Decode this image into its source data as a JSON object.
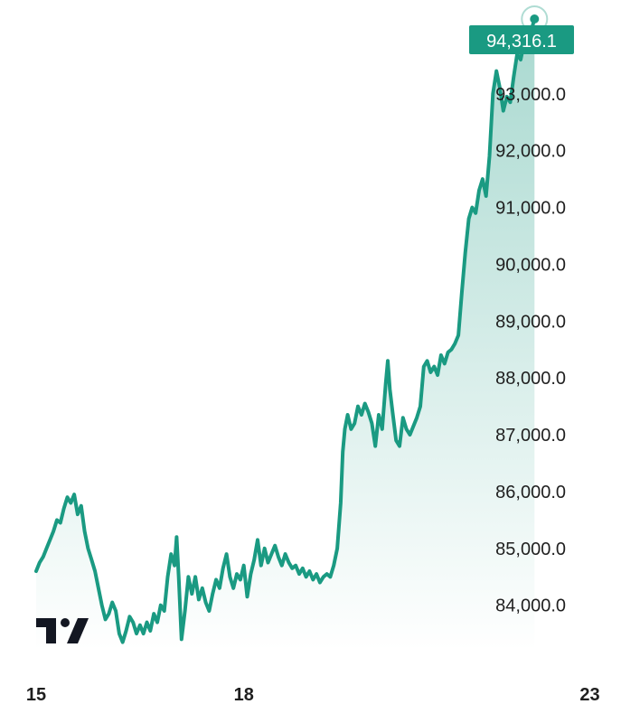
{
  "colors": {
    "line": "#1a9a82",
    "area_top": "#1a9a82",
    "price_tag_bg": "#1a9a82",
    "text": "#1f1f1f",
    "logo": "#131722"
  },
  "logo": {
    "icon": "tradingview-logo-icon"
  },
  "chart_data": {
    "type": "area",
    "title": "",
    "xlabel": "",
    "ylabel": "",
    "xlim": [
      15,
      23.45
    ],
    "ylim": [
      83200,
      94650
    ],
    "y_tick_values": [
      84000,
      85000,
      86000,
      87000,
      88000,
      89000,
      90000,
      91000,
      92000,
      93000
    ],
    "y_tick_labels": [
      "84,000.0",
      "85,000.0",
      "86,000.0",
      "87,000.0",
      "88,000.0",
      "89,000.0",
      "90,000.0",
      "91,000.0",
      "92,000.0",
      "93,000.0"
    ],
    "x_ticks": [
      {
        "x": 15,
        "label": "15"
      },
      {
        "x": 18,
        "label": "18"
      },
      {
        "x": 23,
        "label": "23"
      }
    ],
    "last_price": 94316.1,
    "last_price_label": "94,316.1",
    "series": [
      {
        "points": [
          [
            15.0,
            84600
          ],
          [
            15.05,
            84750
          ],
          [
            15.1,
            84850
          ],
          [
            15.15,
            85000
          ],
          [
            15.2,
            85150
          ],
          [
            15.25,
            85300
          ],
          [
            15.3,
            85500
          ],
          [
            15.35,
            85450
          ],
          [
            15.4,
            85700
          ],
          [
            15.45,
            85900
          ],
          [
            15.5,
            85800
          ],
          [
            15.55,
            85950
          ],
          [
            15.6,
            85600
          ],
          [
            15.65,
            85750
          ],
          [
            15.7,
            85300
          ],
          [
            15.75,
            85000
          ],
          [
            15.8,
            84800
          ],
          [
            15.85,
            84600
          ],
          [
            15.9,
            84300
          ],
          [
            15.95,
            84000
          ],
          [
            16.0,
            83750
          ],
          [
            16.05,
            83850
          ],
          [
            16.1,
            84050
          ],
          [
            16.15,
            83900
          ],
          [
            16.2,
            83500
          ],
          [
            16.25,
            83350
          ],
          [
            16.3,
            83550
          ],
          [
            16.35,
            83800
          ],
          [
            16.4,
            83700
          ],
          [
            16.45,
            83500
          ],
          [
            16.5,
            83650
          ],
          [
            16.55,
            83500
          ],
          [
            16.6,
            83700
          ],
          [
            16.65,
            83550
          ],
          [
            16.7,
            83850
          ],
          [
            16.75,
            83700
          ],
          [
            16.8,
            84000
          ],
          [
            16.85,
            83900
          ],
          [
            16.9,
            84500
          ],
          [
            16.95,
            84900
          ],
          [
            17.0,
            84700
          ],
          [
            17.03,
            85200
          ],
          [
            17.06,
            84500
          ],
          [
            17.1,
            83400
          ],
          [
            17.15,
            83900
          ],
          [
            17.2,
            84500
          ],
          [
            17.25,
            84200
          ],
          [
            17.3,
            84500
          ],
          [
            17.35,
            84100
          ],
          [
            17.4,
            84300
          ],
          [
            17.45,
            84050
          ],
          [
            17.5,
            83900
          ],
          [
            17.55,
            84200
          ],
          [
            17.6,
            84450
          ],
          [
            17.65,
            84300
          ],
          [
            17.7,
            84650
          ],
          [
            17.75,
            84900
          ],
          [
            17.8,
            84500
          ],
          [
            17.85,
            84300
          ],
          [
            17.9,
            84550
          ],
          [
            17.95,
            84450
          ],
          [
            18.0,
            84700
          ],
          [
            18.05,
            84150
          ],
          [
            18.1,
            84550
          ],
          [
            18.15,
            84800
          ],
          [
            18.2,
            85150
          ],
          [
            18.25,
            84700
          ],
          [
            18.3,
            85000
          ],
          [
            18.35,
            84750
          ],
          [
            18.4,
            84900
          ],
          [
            18.45,
            85050
          ],
          [
            18.5,
            84850
          ],
          [
            18.55,
            84700
          ],
          [
            18.6,
            84900
          ],
          [
            18.65,
            84750
          ],
          [
            18.7,
            84650
          ],
          [
            18.75,
            84700
          ],
          [
            18.8,
            84550
          ],
          [
            18.85,
            84650
          ],
          [
            18.9,
            84500
          ],
          [
            18.95,
            84600
          ],
          [
            19.0,
            84450
          ],
          [
            19.05,
            84550
          ],
          [
            19.1,
            84400
          ],
          [
            19.15,
            84500
          ],
          [
            19.2,
            84550
          ],
          [
            19.25,
            84500
          ],
          [
            19.3,
            84700
          ],
          [
            19.35,
            85000
          ],
          [
            19.4,
            85800
          ],
          [
            19.43,
            86700
          ],
          [
            19.46,
            87100
          ],
          [
            19.5,
            87350
          ],
          [
            19.55,
            87100
          ],
          [
            19.6,
            87200
          ],
          [
            19.65,
            87500
          ],
          [
            19.7,
            87350
          ],
          [
            19.75,
            87550
          ],
          [
            19.8,
            87400
          ],
          [
            19.85,
            87200
          ],
          [
            19.9,
            86800
          ],
          [
            19.95,
            87350
          ],
          [
            20.0,
            87100
          ],
          [
            20.05,
            87900
          ],
          [
            20.08,
            88300
          ],
          [
            20.11,
            87800
          ],
          [
            20.15,
            87400
          ],
          [
            20.2,
            86900
          ],
          [
            20.25,
            86800
          ],
          [
            20.3,
            87300
          ],
          [
            20.35,
            87100
          ],
          [
            20.4,
            87000
          ],
          [
            20.45,
            87150
          ],
          [
            20.5,
            87300
          ],
          [
            20.55,
            87500
          ],
          [
            20.6,
            88200
          ],
          [
            20.65,
            88300
          ],
          [
            20.7,
            88100
          ],
          [
            20.75,
            88200
          ],
          [
            20.8,
            88050
          ],
          [
            20.85,
            88400
          ],
          [
            20.9,
            88250
          ],
          [
            20.95,
            88450
          ],
          [
            21.0,
            88500
          ],
          [
            21.05,
            88600
          ],
          [
            21.1,
            88750
          ],
          [
            21.15,
            89500
          ],
          [
            21.2,
            90200
          ],
          [
            21.25,
            90800
          ],
          [
            21.3,
            91000
          ],
          [
            21.35,
            90900
          ],
          [
            21.4,
            91300
          ],
          [
            21.45,
            91500
          ],
          [
            21.5,
            91200
          ],
          [
            21.55,
            91900
          ],
          [
            21.6,
            93000
          ],
          [
            21.65,
            93400
          ],
          [
            21.7,
            93100
          ],
          [
            21.75,
            92700
          ],
          [
            21.8,
            92950
          ],
          [
            21.85,
            92850
          ],
          [
            21.9,
            93300
          ],
          [
            21.95,
            93700
          ],
          [
            22.0,
            93600
          ],
          [
            22.05,
            93900
          ],
          [
            22.1,
            93800
          ],
          [
            22.15,
            94100
          ],
          [
            22.2,
            94316.1
          ]
        ]
      }
    ]
  }
}
